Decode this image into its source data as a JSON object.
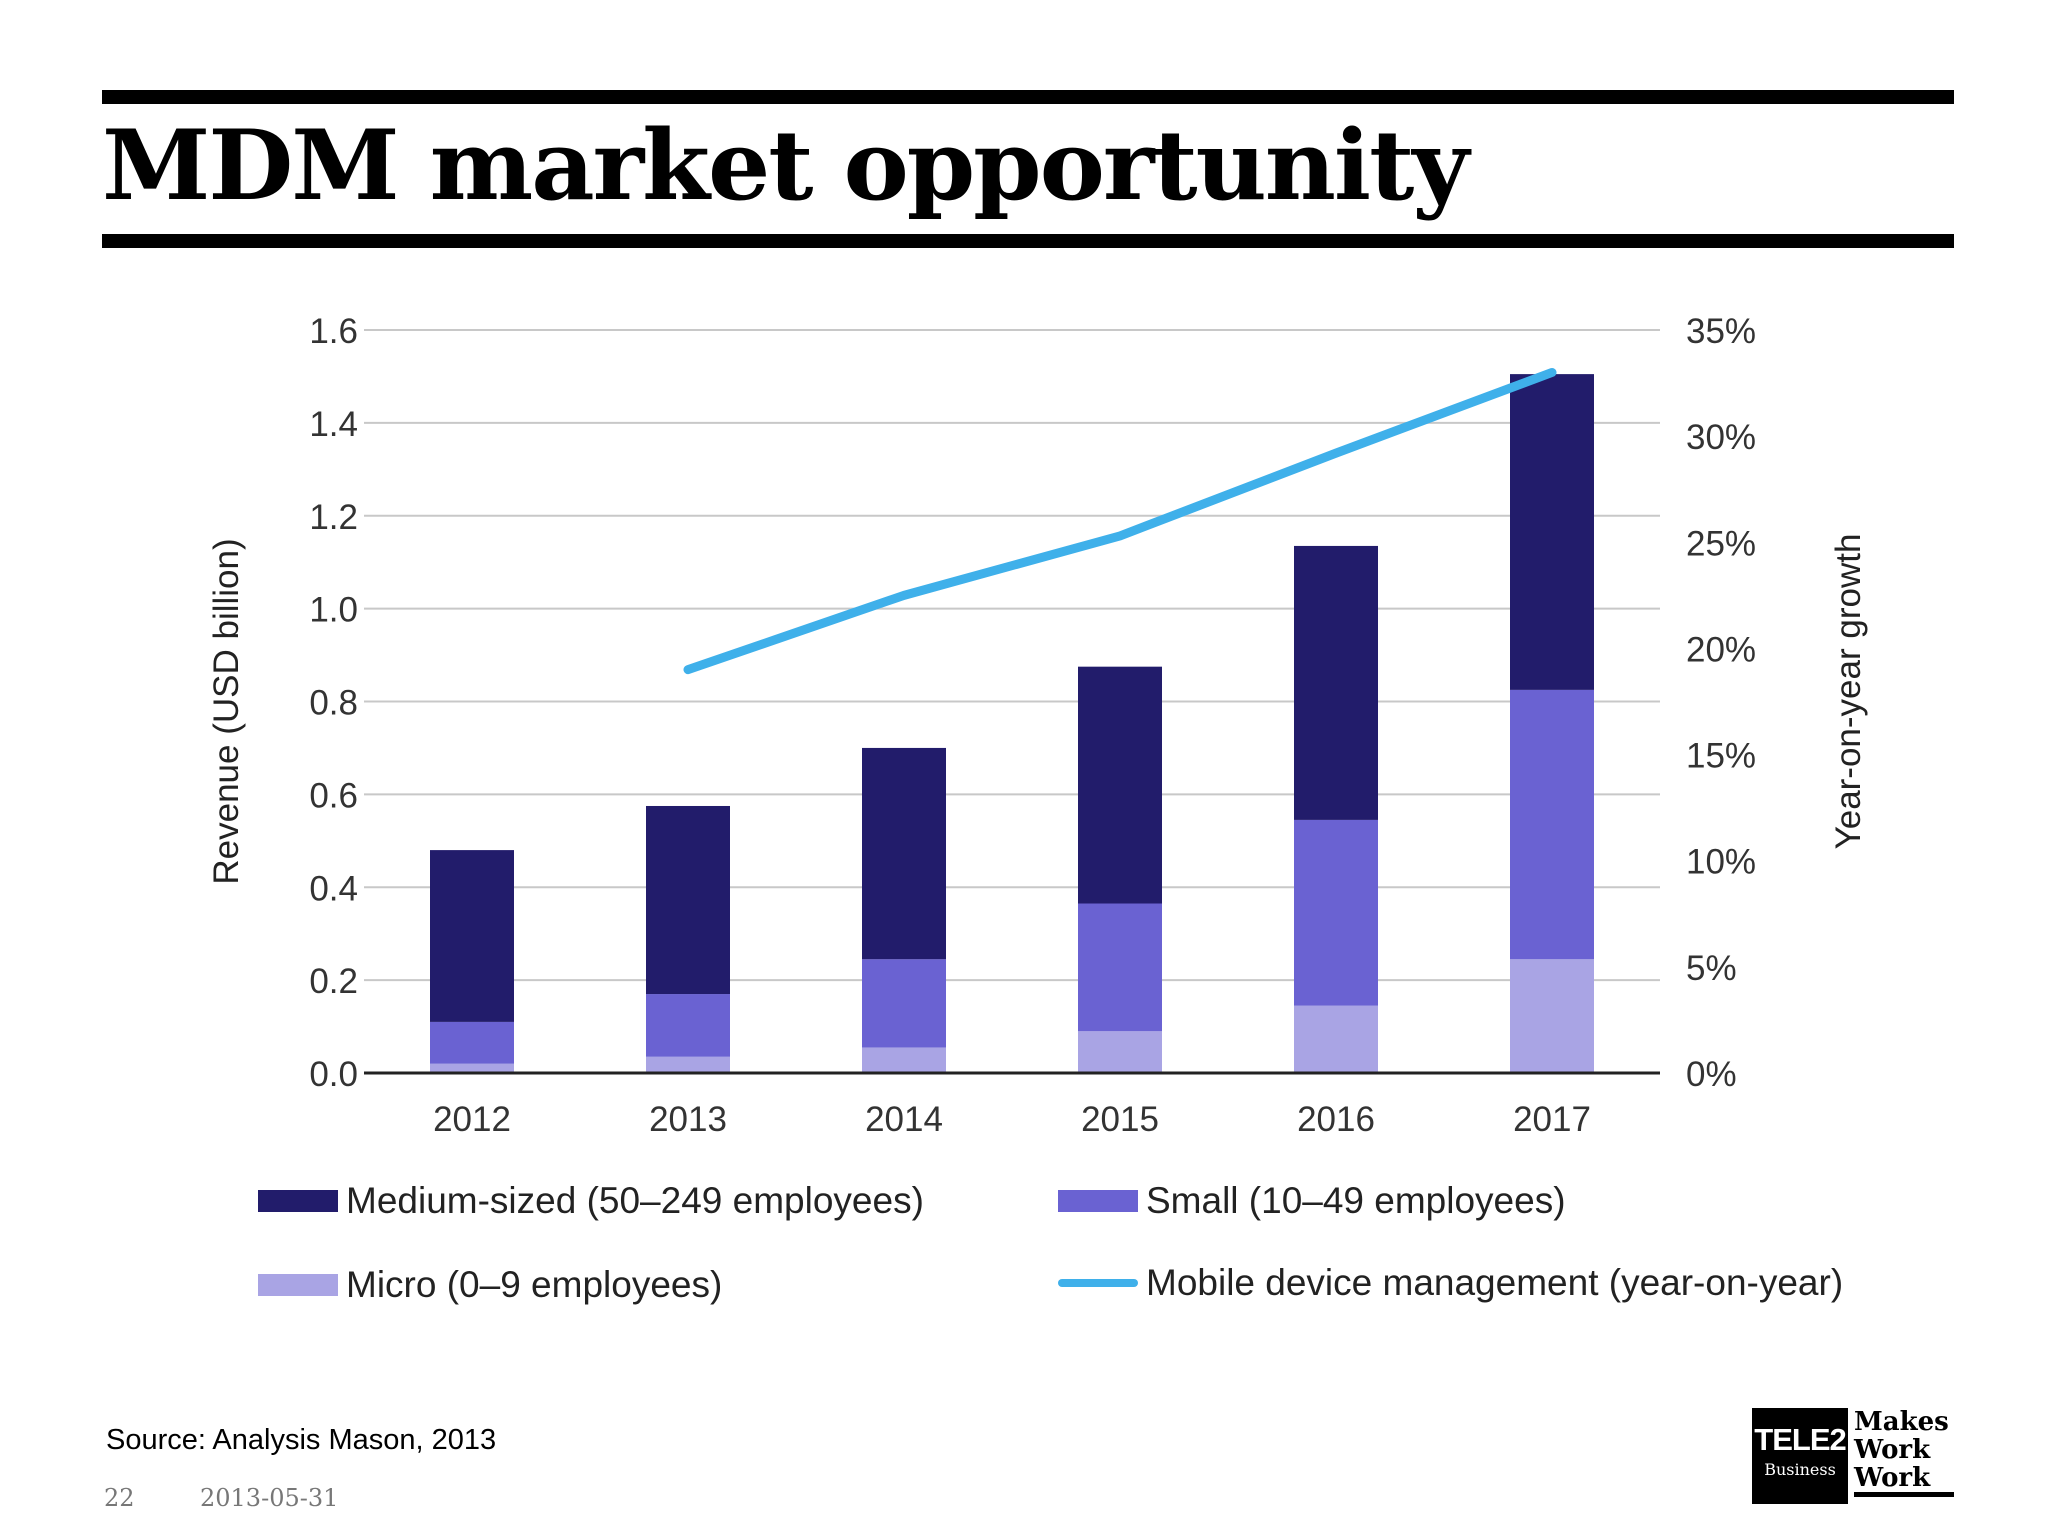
{
  "slide": {
    "title": "MDM market opportunity",
    "source": "Source: Analysis Mason, 2013",
    "page_number": "22",
    "date": "2013-05-31"
  },
  "logo": {
    "brand": "TELE2",
    "sub": "Business",
    "tagline": [
      "Makes",
      "Work",
      "Work"
    ]
  },
  "chart_data": {
    "type": "bar",
    "stacked": true,
    "categories": [
      "2012",
      "2013",
      "2014",
      "2015",
      "2016",
      "2017"
    ],
    "series": [
      {
        "name": "Micro (0–9 employees)",
        "values": [
          0.02,
          0.035,
          0.055,
          0.09,
          0.145,
          0.245
        ],
        "color": "#a9a4e4"
      },
      {
        "name": "Small (10–49 employees)",
        "values": [
          0.09,
          0.135,
          0.19,
          0.275,
          0.4,
          0.58
        ],
        "color": "#6a62d2"
      },
      {
        "name": "Medium-sized (50–249 employees)",
        "values": [
          0.37,
          0.405,
          0.455,
          0.51,
          0.59,
          0.68
        ],
        "color": "#221c6b"
      }
    ],
    "line_series": {
      "name": "Mobile device management (year-on-year)",
      "axis": "right",
      "categories": [
        "2013",
        "2014",
        "2015",
        "2016",
        "2017"
      ],
      "values": [
        19,
        22.5,
        25.3,
        29.2,
        33
      ],
      "color": "#3fb0ea"
    },
    "ylabel": "Revenue (USD billion)",
    "ylabel_right": "Year-on-year growth",
    "ylim": [
      0,
      1.6
    ],
    "yticks": [
      "0.0",
      "0.2",
      "0.4",
      "0.6",
      "0.8",
      "1.0",
      "1.2",
      "1.4",
      "1.6"
    ],
    "ylim_right": [
      0,
      35
    ],
    "yticks_right": [
      "0%",
      "5%",
      "10%",
      "15%",
      "20%",
      "25%",
      "30%",
      "35%"
    ],
    "grid": true,
    "legend_placement": "bottom",
    "legend_order": [
      "Medium-sized (50–249 employees)",
      "Small (10–49 employees)",
      "Micro (0–9 employees)",
      "Mobile device management (year-on-year)"
    ]
  }
}
